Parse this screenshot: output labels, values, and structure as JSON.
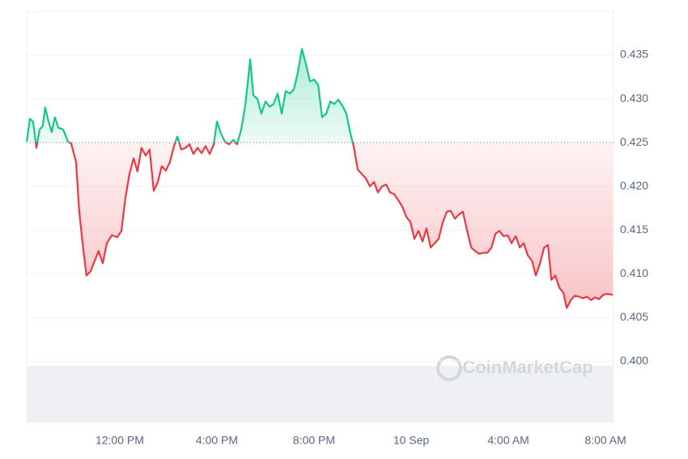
{
  "chart_data": {
    "type": "line",
    "watermark": "CoinMarketCap",
    "baseline": 0.425,
    "color_up": "#16c784",
    "color_down": "#ea3943",
    "x": [
      8.17,
      8.3,
      8.43,
      8.57,
      8.7,
      8.83,
      8.93,
      9.07,
      9.2,
      9.33,
      9.47,
      9.67,
      9.87,
      10.0,
      10.2,
      10.33,
      10.47,
      10.63,
      10.8,
      10.97,
      11.13,
      11.3,
      11.47,
      11.67,
      11.9,
      12.07,
      12.23,
      12.4,
      12.57,
      12.73,
      12.9,
      13.07,
      13.23,
      13.4,
      13.57,
      13.73,
      13.9,
      14.07,
      14.23,
      14.37,
      14.53,
      14.7,
      14.87,
      15.03,
      15.2,
      15.37,
      15.53,
      15.7,
      15.87,
      16.0,
      16.17,
      16.33,
      16.5,
      16.67,
      16.83,
      17.0,
      17.17,
      17.37,
      17.5,
      17.67,
      17.83,
      18.0,
      18.17,
      18.33,
      18.5,
      18.67,
      18.83,
      19.0,
      19.17,
      19.33,
      19.5,
      19.67,
      19.83,
      20.0,
      20.17,
      20.33,
      20.5,
      20.67,
      20.83,
      21.0,
      21.17,
      21.33,
      21.5,
      21.63,
      21.8,
      21.97,
      22.13,
      22.3,
      22.47,
      22.63,
      22.8,
      22.97,
      23.13,
      23.3,
      23.47,
      23.63,
      23.8,
      23.97,
      24.13,
      24.3,
      24.47,
      24.63,
      24.8,
      24.97,
      25.13,
      25.3,
      25.47,
      25.63,
      25.8,
      25.97,
      26.13,
      26.3,
      26.47,
      26.63,
      26.8,
      26.97,
      27.13,
      27.3,
      27.47,
      27.63,
      27.8,
      27.97,
      28.13,
      28.3,
      28.47,
      28.63,
      28.8,
      28.97,
      29.13,
      29.3,
      29.47,
      29.63,
      29.77,
      29.93,
      30.1,
      30.27,
      30.4,
      30.57,
      30.73,
      30.9,
      31.07,
      31.23,
      31.4,
      31.57,
      31.73,
      31.9,
      32.07,
      32.3
    ],
    "values": [
      0.4251,
      0.4277,
      0.4274,
      0.4244,
      0.4265,
      0.4269,
      0.429,
      0.4274,
      0.4262,
      0.4279,
      0.4267,
      0.4265,
      0.4251,
      0.4249,
      0.4228,
      0.4172,
      0.4135,
      0.4098,
      0.4103,
      0.4115,
      0.4126,
      0.4112,
      0.4135,
      0.4144,
      0.4142,
      0.4149,
      0.4186,
      0.4214,
      0.4232,
      0.4217,
      0.4244,
      0.4235,
      0.4242,
      0.4195,
      0.4205,
      0.4223,
      0.4218,
      0.4228,
      0.4246,
      0.4257,
      0.4242,
      0.4244,
      0.4248,
      0.4237,
      0.4244,
      0.4238,
      0.4246,
      0.4237,
      0.4248,
      0.4274,
      0.426,
      0.4251,
      0.4248,
      0.4253,
      0.4248,
      0.4265,
      0.4293,
      0.4345,
      0.4304,
      0.43,
      0.4283,
      0.4297,
      0.4291,
      0.4294,
      0.4306,
      0.4283,
      0.4309,
      0.4306,
      0.4311,
      0.433,
      0.4357,
      0.4339,
      0.432,
      0.4322,
      0.4316,
      0.4279,
      0.4283,
      0.4297,
      0.4294,
      0.4299,
      0.4292,
      0.4283,
      0.426,
      0.4246,
      0.4219,
      0.4214,
      0.4209,
      0.42,
      0.4205,
      0.4193,
      0.42,
      0.4202,
      0.4193,
      0.4191,
      0.4184,
      0.4177,
      0.4165,
      0.4159,
      0.414,
      0.4149,
      0.4137,
      0.4152,
      0.413,
      0.4135,
      0.414,
      0.4159,
      0.4171,
      0.4172,
      0.4163,
      0.4168,
      0.4171,
      0.4149,
      0.413,
      0.4126,
      0.4123,
      0.4124,
      0.4124,
      0.413,
      0.4146,
      0.4149,
      0.4143,
      0.4144,
      0.4135,
      0.4143,
      0.413,
      0.4135,
      0.4121,
      0.4115,
      0.4098,
      0.4112,
      0.413,
      0.4133,
      0.4093,
      0.4098,
      0.4084,
      0.4078,
      0.4061,
      0.407,
      0.4075,
      0.4074,
      0.4072,
      0.4074,
      0.407,
      0.4073,
      0.4071,
      0.4076,
      0.4077,
      0.4076
    ],
    "xlim": [
      8.17,
      32.33
    ],
    "xticks": [
      {
        "value": 12,
        "label": "12:00 PM"
      },
      {
        "value": 16,
        "label": "4:00 PM"
      },
      {
        "value": 20,
        "label": "8:00 PM"
      },
      {
        "value": 24,
        "label": "10 Sep"
      },
      {
        "value": 28,
        "label": "4:00 AM"
      },
      {
        "value": 32,
        "label": "8:00 AM"
      }
    ],
    "ylim": [
      0.393,
      0.44
    ],
    "yticks": [
      {
        "value": 0.4,
        "label": "0.400"
      },
      0.405,
      {
        "value": 0.41,
        "label": "0.410"
      },
      0.415,
      {
        "value": 0.42,
        "label": "0.420"
      },
      0.425,
      {
        "value": 0.43,
        "label": "0.430"
      },
      0.435
    ],
    "grid": true
  }
}
